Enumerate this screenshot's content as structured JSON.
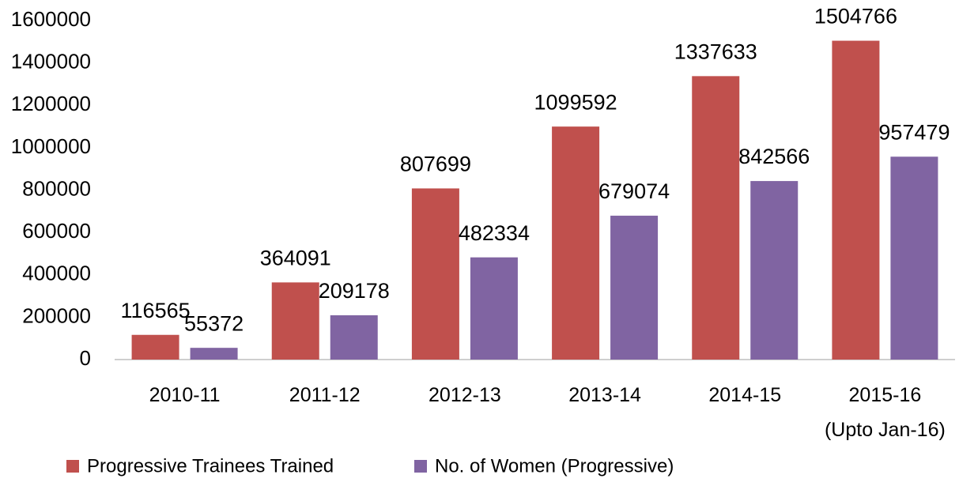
{
  "chart_data": {
    "type": "bar",
    "categories": [
      "2010-11",
      "2011-12",
      "2012-13",
      "2013-14",
      "2014-15",
      "2015-16\n(Upto Jan-16)"
    ],
    "series": [
      {
        "name": "Progressive Trainees Trained",
        "color": "#c0504d",
        "values": [
          116565,
          364091,
          807699,
          1099592,
          1337633,
          1504766
        ]
      },
      {
        "name": "No. of Women (Progressive)",
        "color": "#8064a2",
        "values": [
          55372,
          209178,
          482334,
          679074,
          842566,
          957479
        ]
      }
    ],
    "ylim": [
      0,
      1600000
    ],
    "yticks": [
      0,
      200000,
      400000,
      600000,
      800000,
      1000000,
      1200000,
      1400000,
      1600000
    ],
    "grid": false,
    "legend": "bottom"
  }
}
